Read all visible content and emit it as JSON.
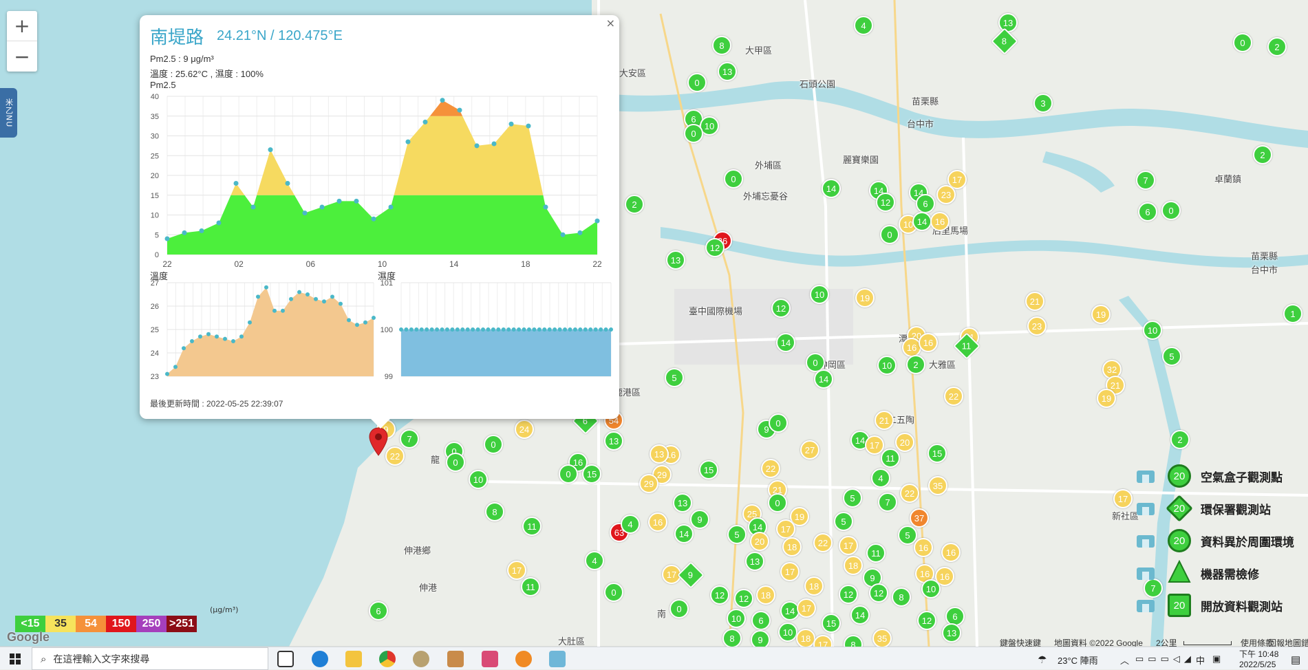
{
  "map": {
    "zoom_in": "+",
    "zoom_out": "−",
    "side_tab": "米乙NU",
    "places": [
      {
        "t": "大甲區",
        "x": 1083,
        "y": 63
      },
      {
        "t": "大安區",
        "x": 900,
        "y": 96
      },
      {
        "t": "外埔區",
        "x": 1097,
        "y": 230
      },
      {
        "t": "苗栗縣",
        "x": 1325,
        "y": 137
      },
      {
        "t": "台中市",
        "x": 1318,
        "y": 170
      },
      {
        "t": "卓蘭鎮",
        "x": 1765,
        "y": 250
      },
      {
        "t": "后里馬場",
        "x": 1355,
        "y": 325
      },
      {
        "t": "苗栗縣",
        "x": 1818,
        "y": 362
      },
      {
        "t": "台中市",
        "x": 1818,
        "y": 382
      },
      {
        "t": "臺中國際機場",
        "x": 1001,
        "y": 442
      },
      {
        "t": "神岡區",
        "x": 1190,
        "y": 520
      },
      {
        "t": "潭子區",
        "x": 1306,
        "y": 482
      },
      {
        "t": "大雅區",
        "x": 1350,
        "y": 520
      },
      {
        "t": "龍",
        "x": 626,
        "y": 658
      },
      {
        "t": "伸港鄉",
        "x": 587,
        "y": 790
      },
      {
        "t": "伸港",
        "x": 609,
        "y": 844
      },
      {
        "t": "大肚區",
        "x": 811,
        "y": 922
      },
      {
        "t": "南",
        "x": 955,
        "y": 882
      },
      {
        "t": "鹿港區",
        "x": 892,
        "y": 560
      },
      {
        "t": "新社區",
        "x": 1616,
        "y": 740
      },
      {
        "t": "二五陶",
        "x": 1290,
        "y": 600
      },
      {
        "t": "外埔忘憂谷",
        "x": 1080,
        "y": 275
      },
      {
        "t": "石頭公園",
        "x": 1162,
        "y": 112
      },
      {
        "t": "麗寶樂園",
        "x": 1225,
        "y": 222
      }
    ]
  },
  "markers": [
    {
      "v": "4",
      "c": "g",
      "x": 1255,
      "y": 37
    },
    {
      "v": "13",
      "c": "g",
      "x": 1465,
      "y": 33
    },
    {
      "v": "8",
      "c": "g",
      "x": 1460,
      "y": 60,
      "d": 1
    },
    {
      "v": "8",
      "c": "g",
      "x": 1049,
      "y": 66
    },
    {
      "v": "13",
      "c": "g",
      "x": 1057,
      "y": 104
    },
    {
      "v": "0",
      "c": "g",
      "x": 1013,
      "y": 120
    },
    {
      "v": "0",
      "c": "g",
      "x": 1806,
      "y": 62
    },
    {
      "v": "2",
      "c": "g",
      "x": 1856,
      "y": 68
    },
    {
      "v": "3",
      "c": "g",
      "x": 1516,
      "y": 150
    },
    {
      "v": "6",
      "c": "g",
      "x": 1008,
      "y": 173
    },
    {
      "v": "10",
      "c": "g",
      "x": 1031,
      "y": 183
    },
    {
      "v": "0",
      "c": "g",
      "x": 1008,
      "y": 194
    },
    {
      "v": "2",
      "c": "g",
      "x": 1835,
      "y": 225
    },
    {
      "v": "0",
      "c": "g",
      "x": 1066,
      "y": 260
    },
    {
      "v": "7",
      "c": "g",
      "x": 1665,
      "y": 262
    },
    {
      "v": "14",
      "c": "g",
      "x": 1208,
      "y": 274
    },
    {
      "v": "14",
      "c": "g",
      "x": 1277,
      "y": 277
    },
    {
      "v": "12",
      "c": "g",
      "x": 1287,
      "y": 294
    },
    {
      "v": "17",
      "c": "y",
      "x": 1391,
      "y": 261
    },
    {
      "v": "14",
      "c": "g",
      "x": 1335,
      "y": 280
    },
    {
      "v": "6",
      "c": "g",
      "x": 1345,
      "y": 296
    },
    {
      "v": "23",
      "c": "y",
      "x": 1375,
      "y": 283
    },
    {
      "v": "2",
      "c": "g",
      "x": 922,
      "y": 297
    },
    {
      "v": "6",
      "c": "g",
      "x": 1668,
      "y": 308
    },
    {
      "v": "0",
      "c": "g",
      "x": 1702,
      "y": 306
    },
    {
      "v": "10",
      "c": "y",
      "x": 1320,
      "y": 326
    },
    {
      "v": "14",
      "c": "g",
      "x": 1340,
      "y": 322
    },
    {
      "v": "16",
      "c": "y",
      "x": 1366,
      "y": 322
    },
    {
      "v": "0",
      "c": "g",
      "x": 1293,
      "y": 341
    },
    {
      "v": "26",
      "c": "r",
      "x": 1050,
      "y": 350
    },
    {
      "v": "12",
      "c": "g",
      "x": 1039,
      "y": 360
    },
    {
      "v": "13",
      "c": "g",
      "x": 982,
      "y": 378
    },
    {
      "v": "10",
      "c": "g",
      "x": 1191,
      "y": 428
    },
    {
      "v": "19",
      "c": "y",
      "x": 1257,
      "y": 433
    },
    {
      "v": "21",
      "c": "y",
      "x": 1504,
      "y": 438
    },
    {
      "v": "19",
      "c": "y",
      "x": 1600,
      "y": 457
    },
    {
      "v": "1",
      "c": "g",
      "x": 1879,
      "y": 456
    },
    {
      "v": "12",
      "c": "g",
      "x": 1135,
      "y": 448
    },
    {
      "v": "23",
      "c": "y",
      "x": 1507,
      "y": 474
    },
    {
      "v": "10",
      "c": "g",
      "x": 1675,
      "y": 480
    },
    {
      "v": "20",
      "c": "y",
      "x": 1332,
      "y": 488
    },
    {
      "v": "16",
      "c": "y",
      "x": 1325,
      "y": 505
    },
    {
      "v": "16",
      "c": "y",
      "x": 1349,
      "y": 498
    },
    {
      "v": "21",
      "c": "y",
      "x": 1409,
      "y": 490
    },
    {
      "v": "11",
      "c": "g",
      "x": 1405,
      "y": 503,
      "d": 1
    },
    {
      "v": "14",
      "c": "g",
      "x": 1142,
      "y": 498
    },
    {
      "v": "0",
      "c": "g",
      "x": 1185,
      "y": 527
    },
    {
      "v": "10",
      "c": "g",
      "x": 1289,
      "y": 531
    },
    {
      "v": "2",
      "c": "g",
      "x": 1331,
      "y": 530
    },
    {
      "v": "14",
      "c": "g",
      "x": 1197,
      "y": 551
    },
    {
      "v": "5",
      "c": "g",
      "x": 1703,
      "y": 518
    },
    {
      "v": "32",
      "c": "y",
      "x": 1616,
      "y": 537
    },
    {
      "v": "21",
      "c": "y",
      "x": 1621,
      "y": 560
    },
    {
      "v": "19",
      "c": "y",
      "x": 1608,
      "y": 579
    },
    {
      "v": "22",
      "c": "y",
      "x": 1386,
      "y": 576
    },
    {
      "v": "5",
      "c": "g",
      "x": 980,
      "y": 549
    },
    {
      "v": "9",
      "c": "y",
      "x": 561,
      "y": 624
    },
    {
      "v": "7",
      "c": "g",
      "x": 595,
      "y": 638
    },
    {
      "v": "22",
      "c": "y",
      "x": 574,
      "y": 663
    },
    {
      "v": "24",
      "c": "y",
      "x": 762,
      "y": 624
    },
    {
      "v": "54",
      "c": "o",
      "x": 892,
      "y": 611
    },
    {
      "v": "6",
      "c": "g",
      "x": 851,
      "y": 612,
      "d": 1
    },
    {
      "v": "13",
      "c": "g",
      "x": 892,
      "y": 641
    },
    {
      "v": "9",
      "c": "g",
      "x": 1114,
      "y": 624
    },
    {
      "v": "0",
      "c": "g",
      "x": 1131,
      "y": 615
    },
    {
      "v": "21",
      "c": "y",
      "x": 1285,
      "y": 611
    },
    {
      "v": "0",
      "c": "g",
      "x": 717,
      "y": 646
    },
    {
      "v": "0",
      "c": "g",
      "x": 660,
      "y": 656
    },
    {
      "v": "0",
      "c": "g",
      "x": 662,
      "y": 672
    },
    {
      "v": "14",
      "c": "g",
      "x": 1250,
      "y": 640
    },
    {
      "v": "17",
      "c": "y",
      "x": 1271,
      "y": 647
    },
    {
      "v": "20",
      "c": "y",
      "x": 1315,
      "y": 643
    },
    {
      "v": "11",
      "c": "g",
      "x": 1294,
      "y": 666
    },
    {
      "v": "15",
      "c": "g",
      "x": 1362,
      "y": 659
    },
    {
      "v": "2",
      "c": "g",
      "x": 1715,
      "y": 639
    },
    {
      "v": "27",
      "c": "y",
      "x": 1177,
      "y": 654
    },
    {
      "v": "16",
      "c": "y",
      "x": 975,
      "y": 661
    },
    {
      "v": "13",
      "c": "y",
      "x": 958,
      "y": 660
    },
    {
      "v": "29",
      "c": "y",
      "x": 962,
      "y": 690
    },
    {
      "v": "29",
      "c": "y",
      "x": 943,
      "y": 703
    },
    {
      "v": "15",
      "c": "g",
      "x": 1030,
      "y": 683
    },
    {
      "v": "22",
      "c": "y",
      "x": 1120,
      "y": 681
    },
    {
      "v": "21",
      "c": "y",
      "x": 1130,
      "y": 712
    },
    {
      "v": "16",
      "c": "g",
      "x": 840,
      "y": 672
    },
    {
      "v": "0",
      "c": "g",
      "x": 826,
      "y": 689
    },
    {
      "v": "15",
      "c": "g",
      "x": 860,
      "y": 689
    },
    {
      "v": "10",
      "c": "g",
      "x": 695,
      "y": 697
    },
    {
      "v": "4",
      "c": "g",
      "x": 1280,
      "y": 695
    },
    {
      "v": "35",
      "c": "y",
      "x": 1363,
      "y": 706
    },
    {
      "v": "22",
      "c": "y",
      "x": 1322,
      "y": 717
    },
    {
      "v": "17",
      "c": "y",
      "x": 1632,
      "y": 725
    },
    {
      "v": "0",
      "c": "g",
      "x": 1130,
      "y": 731
    },
    {
      "v": "5",
      "c": "g",
      "x": 1239,
      "y": 724
    },
    {
      "v": "7",
      "c": "g",
      "x": 1290,
      "y": 730
    },
    {
      "v": "13",
      "c": "g",
      "x": 992,
      "y": 731
    },
    {
      "v": "8",
      "c": "g",
      "x": 719,
      "y": 744
    },
    {
      "v": "11",
      "c": "g",
      "x": 773,
      "y": 765
    },
    {
      "v": "37",
      "c": "o",
      "x": 1336,
      "y": 753
    },
    {
      "v": "63",
      "c": "r",
      "x": 900,
      "y": 774
    },
    {
      "v": "4",
      "c": "g",
      "x": 916,
      "y": 762
    },
    {
      "v": "9",
      "c": "g",
      "x": 1017,
      "y": 755
    },
    {
      "v": "16",
      "c": "y",
      "x": 956,
      "y": 759
    },
    {
      "v": "25",
      "c": "y",
      "x": 1093,
      "y": 747
    },
    {
      "v": "19",
      "c": "y",
      "x": 1162,
      "y": 751
    },
    {
      "v": "14",
      "c": "g",
      "x": 1101,
      "y": 766
    },
    {
      "v": "17",
      "c": "y",
      "x": 1142,
      "y": 769
    },
    {
      "v": "5",
      "c": "g",
      "x": 1226,
      "y": 758
    },
    {
      "v": "5",
      "c": "g",
      "x": 1071,
      "y": 777
    },
    {
      "v": "14",
      "c": "g",
      "x": 994,
      "y": 776
    },
    {
      "v": "5",
      "c": "g",
      "x": 1319,
      "y": 778
    },
    {
      "v": "16",
      "c": "y",
      "x": 1382,
      "y": 803
    },
    {
      "v": "16",
      "c": "y",
      "x": 1342,
      "y": 796
    },
    {
      "v": "20",
      "c": "y",
      "x": 1104,
      "y": 787
    },
    {
      "v": "18",
      "c": "y",
      "x": 1151,
      "y": 795
    },
    {
      "v": "22",
      "c": "y",
      "x": 1196,
      "y": 789
    },
    {
      "v": "17",
      "c": "y",
      "x": 1233,
      "y": 793
    },
    {
      "v": "11",
      "c": "g",
      "x": 1273,
      "y": 804
    },
    {
      "v": "4",
      "c": "g",
      "x": 864,
      "y": 815
    },
    {
      "v": "17",
      "c": "y",
      "x": 751,
      "y": 829
    },
    {
      "v": "17",
      "c": "y",
      "x": 976,
      "y": 835
    },
    {
      "v": "9",
      "c": "g",
      "x": 1004,
      "y": 836,
      "d": 1
    },
    {
      "v": "13",
      "c": "g",
      "x": 1097,
      "y": 816
    },
    {
      "v": "17",
      "c": "y",
      "x": 1148,
      "y": 831
    },
    {
      "v": "18",
      "c": "y",
      "x": 1240,
      "y": 822
    },
    {
      "v": "9",
      "c": "g",
      "x": 1268,
      "y": 840
    },
    {
      "v": "16",
      "c": "y",
      "x": 1344,
      "y": 834
    },
    {
      "v": "16",
      "c": "y",
      "x": 1373,
      "y": 838
    },
    {
      "v": "11",
      "c": "g",
      "x": 771,
      "y": 853
    },
    {
      "v": "0",
      "c": "g",
      "x": 892,
      "y": 861
    },
    {
      "v": "12",
      "c": "g",
      "x": 1046,
      "y": 865
    },
    {
      "v": "12",
      "c": "g",
      "x": 1081,
      "y": 870
    },
    {
      "v": "18",
      "c": "y",
      "x": 1113,
      "y": 865
    },
    {
      "v": "18",
      "c": "y",
      "x": 1183,
      "y": 852
    },
    {
      "v": "12",
      "c": "g",
      "x": 1233,
      "y": 864
    },
    {
      "v": "12",
      "c": "g",
      "x": 1277,
      "y": 862
    },
    {
      "v": "8",
      "c": "g",
      "x": 1310,
      "y": 868
    },
    {
      "v": "10",
      "c": "g",
      "x": 1353,
      "y": 856
    },
    {
      "v": "6",
      "c": "g",
      "x": 550,
      "y": 888
    },
    {
      "v": "0",
      "c": "g",
      "x": 987,
      "y": 885
    },
    {
      "v": "10",
      "c": "g",
      "x": 1070,
      "y": 899
    },
    {
      "v": "6",
      "c": "g",
      "x": 1106,
      "y": 902
    },
    {
      "v": "14",
      "c": "g",
      "x": 1148,
      "y": 888
    },
    {
      "v": "17",
      "c": "y",
      "x": 1172,
      "y": 884
    },
    {
      "v": "15",
      "c": "g",
      "x": 1208,
      "y": 906
    },
    {
      "v": "14",
      "c": "g",
      "x": 1250,
      "y": 894
    },
    {
      "v": "12",
      "c": "g",
      "x": 1347,
      "y": 902
    },
    {
      "v": "6",
      "c": "g",
      "x": 1388,
      "y": 896
    },
    {
      "v": "8",
      "c": "g",
      "x": 1064,
      "y": 928
    },
    {
      "v": "9",
      "c": "g",
      "x": 1105,
      "y": 930
    },
    {
      "v": "10",
      "c": "g",
      "x": 1145,
      "y": 919
    },
    {
      "v": "18",
      "c": "y",
      "x": 1171,
      "y": 928
    },
    {
      "v": "35",
      "c": "y",
      "x": 1282,
      "y": 928
    },
    {
      "v": "13",
      "c": "g",
      "x": 1383,
      "y": 920
    },
    {
      "v": "7",
      "c": "g",
      "x": 1676,
      "y": 855
    },
    {
      "v": "8",
      "c": "g",
      "x": 1240,
      "y": 937
    },
    {
      "v": "17",
      "c": "y",
      "x": 1196,
      "y": 937
    }
  ],
  "popup": {
    "close": "×",
    "title": "南堤路",
    "coord": "24.21°N / 120.475°E",
    "pm_line": "Pm2.5 : 9 μg/m³",
    "th_line": "溫度 : 25.62°C , 濕度 : 100%",
    "updated": "最後更新時間 : 2022-05-25 22:39:07"
  },
  "chart_data": [
    {
      "type": "area",
      "title": "Pm2.5",
      "x_ticks": [
        "22",
        "02",
        "06",
        "10",
        "14",
        "18",
        "22"
      ],
      "ylim": [
        0,
        40
      ],
      "y_ticks": [
        0,
        5,
        10,
        15,
        20,
        25,
        30,
        35,
        40
      ],
      "values": [
        4,
        5.5,
        6,
        8,
        18,
        12,
        26.5,
        18,
        10.5,
        12,
        13.5,
        13.5,
        9,
        12,
        28.5,
        33.5,
        39,
        36.5,
        27.5,
        28,
        33,
        32.5,
        12,
        5,
        5.5,
        8.5
      ],
      "bands": [
        {
          "max": 15,
          "color": "#4cef3c"
        },
        {
          "max": 35,
          "color": "#f6da60"
        },
        {
          "max": 54,
          "color": "#f5913a"
        }
      ]
    },
    {
      "type": "area",
      "title": "溫度",
      "ylim": [
        23,
        27
      ],
      "y_ticks": [
        23,
        24,
        25,
        26,
        27
      ],
      "values": [
        23.1,
        23.4,
        24.2,
        24.5,
        24.7,
        24.8,
        24.7,
        24.6,
        24.5,
        24.7,
        25.3,
        26.4,
        26.8,
        25.8,
        25.8,
        26.3,
        26.6,
        26.5,
        26.3,
        26.2,
        26.4,
        26.1,
        25.4,
        25.2,
        25.3,
        25.5
      ]
    },
    {
      "type": "area",
      "title": "濕度",
      "ylim": [
        99,
        101
      ],
      "y_ticks": [
        99,
        100,
        101
      ],
      "values": [
        100,
        100,
        100,
        100,
        100,
        100,
        100,
        100,
        100,
        100,
        100,
        100,
        100,
        100,
        100,
        100,
        100,
        100,
        100,
        100,
        100,
        100,
        100,
        100,
        100,
        100,
        100,
        100,
        100,
        100,
        100,
        100,
        100,
        100,
        100,
        100,
        100,
        100,
        100,
        100,
        100,
        100
      ]
    }
  ],
  "legend": {
    "levels": [
      {
        "label": "<15",
        "bg": "#3ecf3e",
        "fg": "#fff"
      },
      {
        "label": "35",
        "bg": "#f6e35c",
        "fg": "#333"
      },
      {
        "label": "54",
        "bg": "#f5913a",
        "fg": "#fff"
      },
      {
        "label": "150",
        "bg": "#e0161c",
        "fg": "#fff"
      },
      {
        "label": "250",
        "bg": "#a53fbc",
        "fg": "#fff"
      },
      {
        "label": ">251",
        "bg": "#8c0d16",
        "fg": "#fff"
      }
    ],
    "unit": "(μg/m³)",
    "types": [
      {
        "badge": "20",
        "label": "空氣盒子觀測點",
        "shape": "circle"
      },
      {
        "badge": "20",
        "label": "環保署觀測站",
        "shape": "diamond"
      },
      {
        "badge": "20",
        "label": "資料異於周圍環境",
        "shape": "circle"
      },
      {
        "badge": "",
        "label": "機器需檢修",
        "shape": "triangle"
      },
      {
        "badge": "20",
        "label": "開放資料觀測站",
        "shape": "square"
      }
    ]
  },
  "attribution": {
    "google": "Google",
    "shortcuts": "鍵盤快速鍵",
    "mapdata": "地圖資料 ©2022 Google",
    "scale": "2公里",
    "terms": "使用條款",
    "report": "回報地圖錯誤"
  },
  "taskbar": {
    "search_placeholder": "在這裡輸入文字來搜尋",
    "weather": "23°C 陣雨",
    "ime": "中",
    "time": "下午 10:48",
    "date": "2022/5/25"
  },
  "colors": {
    "g": "#3ecf3e",
    "y": "#f6d35c",
    "o": "#f0862e",
    "r": "#e0161c"
  }
}
